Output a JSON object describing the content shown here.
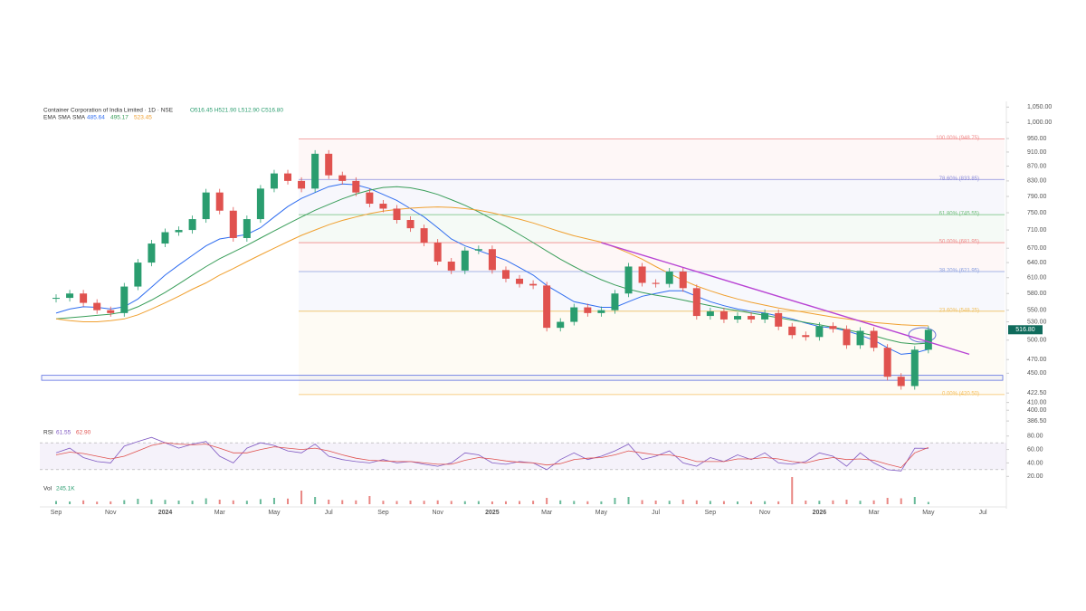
{
  "chart_data": {
    "type": "candlestick",
    "title": "Container Corporation of India Limited · 1D · NSE",
    "ohlc": "O516.45 H521.90 L512.90 C516.80",
    "log_scale": true,
    "up_color": "#2a9d6f",
    "down_color": "#e0524f",
    "categories": [
      "Sep",
      null,
      null,
      null,
      "Nov",
      null,
      null,
      null,
      "2024",
      null,
      null,
      null,
      "Mar",
      null,
      null,
      null,
      "May",
      null,
      null,
      null,
      "Jul",
      null,
      null,
      null,
      "Sep",
      null,
      null,
      null,
      "Nov",
      null,
      null,
      null,
      "2025",
      null,
      null,
      null,
      "Mar",
      null,
      null,
      null,
      "May",
      null,
      null,
      null,
      "Jul",
      null,
      null,
      null,
      "Sep",
      null,
      null,
      null,
      "Nov",
      null,
      null,
      null,
      "2026",
      null,
      null,
      null,
      "Mar",
      null,
      null,
      null,
      "May",
      null,
      null,
      null,
      "Jul",
      null
    ],
    "close": [
      572,
      580,
      563,
      550,
      545,
      593,
      640,
      680,
      705,
      710,
      735,
      800,
      755,
      692,
      735,
      810,
      850,
      830,
      810,
      905,
      845,
      830,
      800,
      772,
      760,
      733,
      714,
      682,
      642,
      624,
      665,
      668,
      625,
      608,
      598,
      595,
      520,
      530,
      555,
      545,
      550,
      580,
      632,
      600,
      598,
      622,
      590,
      540,
      548,
      534,
      540,
      534,
      545,
      522,
      508,
      505,
      523,
      518,
      492,
      515,
      488,
      445,
      432,
      485,
      516.8,
      null,
      null,
      null,
      null,
      null
    ],
    "series": [
      {
        "name": "EMA",
        "color": "#2f6df0",
        "value_label": "485.64",
        "values": [
          545,
          552,
          556,
          555,
          552,
          556,
          570,
          592,
          615,
          635,
          655,
          675,
          690,
          695,
          700,
          715,
          740,
          765,
          785,
          800,
          815,
          822,
          820,
          810,
          795,
          780,
          760,
          740,
          715,
          690,
          675,
          665,
          655,
          645,
          630,
          615,
          595,
          580,
          565,
          560,
          555,
          555,
          565,
          575,
          580,
          585,
          585,
          575,
          565,
          558,
          552,
          548,
          545,
          540,
          535,
          528,
          522,
          520,
          515,
          508,
          500,
          488,
          478,
          480,
          485.64,
          null,
          null,
          null,
          null,
          null
        ]
      },
      {
        "name": "SMA",
        "color": "#3a9e5a",
        "value_label": "495.17",
        "values": [
          535,
          537,
          539,
          541,
          543,
          547,
          556,
          568,
          582,
          598,
          615,
          632,
          648,
          662,
          676,
          692,
          708,
          724,
          740,
          756,
          770,
          784,
          796,
          806,
          813,
          815,
          812,
          805,
          795,
          782,
          768,
          752,
          735,
          718,
          700,
          682,
          664,
          647,
          632,
          618,
          606,
          596,
          588,
          582,
          577,
          573,
          568,
          563,
          558,
          553,
          549,
          545,
          541,
          537,
          533,
          529,
          525,
          521,
          517,
          512,
          507,
          501,
          496,
          494,
          495.17,
          null,
          null,
          null,
          null,
          null
        ]
      },
      {
        "name": "SMA",
        "color": "#f0a030",
        "value_label": "523.45",
        "values": [
          535,
          532,
          530,
          530,
          532,
          535,
          542,
          552,
          563,
          575,
          588,
          600,
          615,
          628,
          642,
          656,
          670,
          684,
          698,
          710,
          722,
          732,
          740,
          748,
          754,
          758,
          761,
          763,
          764,
          763,
          760,
          756,
          750,
          742,
          735,
          726,
          716,
          706,
          697,
          690,
          683,
          672,
          660,
          647,
          632,
          618,
          605,
          594,
          585,
          577,
          570,
          564,
          559,
          554,
          550,
          546,
          542,
          538,
          535,
          532,
          529,
          527,
          525,
          524,
          523.45,
          null,
          null,
          null,
          null,
          null
        ]
      }
    ],
    "ylim": [
      380,
      1060
    ],
    "yticks": [
      {
        "value": 1050,
        "label": "1,050.00"
      },
      {
        "value": 1000,
        "label": "1,000.00"
      },
      {
        "value": 950,
        "label": "950.00"
      },
      {
        "value": 910,
        "label": "910.00"
      },
      {
        "value": 870,
        "label": "870.00"
      },
      {
        "value": 830,
        "label": "830.00"
      },
      {
        "value": 790,
        "label": "790.00"
      },
      {
        "value": 750,
        "label": "750.00"
      },
      {
        "value": 710,
        "label": "710.00"
      },
      {
        "value": 670,
        "label": "670.00"
      },
      {
        "value": 640,
        "label": "640.00"
      },
      {
        "value": 610,
        "label": "610.00"
      },
      {
        "value": 580,
        "label": "580.00"
      },
      {
        "value": 550,
        "label": "550.00"
      },
      {
        "value": 530,
        "label": "530.00"
      },
      {
        "value": 500,
        "label": "500.00"
      },
      {
        "value": 470,
        "label": "470.00"
      },
      {
        "value": 450,
        "label": "450.00"
      },
      {
        "value": 422.5,
        "label": "422.50"
      },
      {
        "value": 410,
        "label": "410.00"
      },
      {
        "value": 400,
        "label": "400.00"
      },
      {
        "value": 386.5,
        "label": "386.50"
      }
    ],
    "last_price": {
      "value": 516.8,
      "label": "516.80",
      "color": "#0f6b5c"
    },
    "fib_levels": [
      {
        "label": "100.00% (948.75)",
        "value": 948.75,
        "color": "#f08a8a"
      },
      {
        "label": "78.60% (833.85)",
        "value": 833.85,
        "color": "#8a8ad8"
      },
      {
        "label": "61.80% (745.55)",
        "value": 745.55,
        "color": "#6fbf7a"
      },
      {
        "label": "50.00% (681.95)",
        "value": 681.95,
        "color": "#f08a8a"
      },
      {
        "label": "38.20% (621.95)",
        "value": 621.95,
        "color": "#8aa0e0"
      },
      {
        "label": "23.60% (548.25)",
        "value": 548.25,
        "color": "#f0c060"
      },
      {
        "label": "0.00% (420.50)",
        "value": 420.5,
        "color": "#f5c060"
      }
    ],
    "trendline": {
      "color": "#b844d4",
      "values": [
        null,
        null,
        null,
        null,
        null,
        null,
        null,
        null,
        null,
        null,
        null,
        null,
        null,
        null,
        null,
        null,
        null,
        null,
        null,
        null,
        null,
        null,
        null,
        null,
        null,
        null,
        null,
        null,
        null,
        null,
        null,
        null,
        null,
        null,
        null,
        null,
        null,
        null,
        null,
        null,
        682,
        null,
        null,
        null,
        null,
        null,
        null,
        null,
        null,
        null,
        null,
        null,
        null,
        null,
        null,
        null,
        null,
        null,
        null,
        null,
        null,
        null,
        null,
        null,
        null,
        null,
        null,
        478,
        null,
        null
      ]
    },
    "support_zone": {
      "values": [
        440,
        447
      ],
      "color": "#5b6ee1"
    },
    "rsi": {
      "name": "RSI",
      "ylim": [
        15,
        85
      ],
      "band": [
        30,
        70
      ],
      "yticks": [
        {
          "value": 80,
          "label": "80.00"
        },
        {
          "value": 60,
          "label": "60.00"
        },
        {
          "value": 40,
          "label": "40.00"
        },
        {
          "value": 20,
          "label": "20.00"
        }
      ],
      "series": [
        {
          "color": "#7e57c2",
          "value_label": "61.55",
          "values": [
            55,
            62,
            48,
            42,
            40,
            65,
            72,
            78,
            70,
            62,
            68,
            72,
            50,
            40,
            62,
            70,
            66,
            58,
            55,
            68,
            50,
            45,
            42,
            40,
            45,
            40,
            42,
            38,
            35,
            40,
            55,
            52,
            40,
            38,
            42,
            40,
            30,
            45,
            55,
            45,
            50,
            58,
            68,
            45,
            50,
            58,
            40,
            35,
            48,
            42,
            52,
            45,
            55,
            40,
            38,
            42,
            55,
            50,
            35,
            55,
            40,
            30,
            28,
            62,
            61.55,
            null,
            null,
            null,
            null,
            null
          ]
        },
        {
          "color": "#e0524f",
          "value_label": "62.90",
          "values": [
            52,
            56,
            54,
            50,
            46,
            50,
            58,
            66,
            70,
            68,
            67,
            68,
            62,
            55,
            55,
            60,
            64,
            62,
            60,
            62,
            58,
            52,
            47,
            44,
            43,
            42,
            42,
            40,
            38,
            38,
            44,
            48,
            46,
            43,
            41,
            40,
            37,
            39,
            45,
            47,
            48,
            52,
            58,
            55,
            52,
            52,
            48,
            42,
            42,
            42,
            46,
            46,
            48,
            46,
            42,
            40,
            45,
            48,
            45,
            46,
            44,
            38,
            33,
            55,
            62.9,
            null,
            null,
            null,
            null,
            null
          ]
        }
      ]
    },
    "volume": {
      "name": "Vol",
      "value_label": "245.1K",
      "values": [
        350,
        300,
        420,
        280,
        310,
        450,
        600,
        520,
        480,
        400,
        380,
        650,
        500,
        420,
        380,
        560,
        700,
        620,
        1500,
        800,
        500,
        450,
        420,
        900,
        380,
        350,
        400,
        380,
        420,
        360,
        330,
        340,
        300,
        320,
        350,
        380,
        700,
        420,
        360,
        320,
        310,
        700,
        800,
        450,
        400,
        380,
        500,
        420,
        360,
        340,
        300,
        320,
        330,
        310,
        3000,
        400,
        380,
        420,
        500,
        380,
        420,
        700,
        650,
        800,
        245.1,
        null,
        null,
        null,
        null,
        null
      ]
    }
  }
}
